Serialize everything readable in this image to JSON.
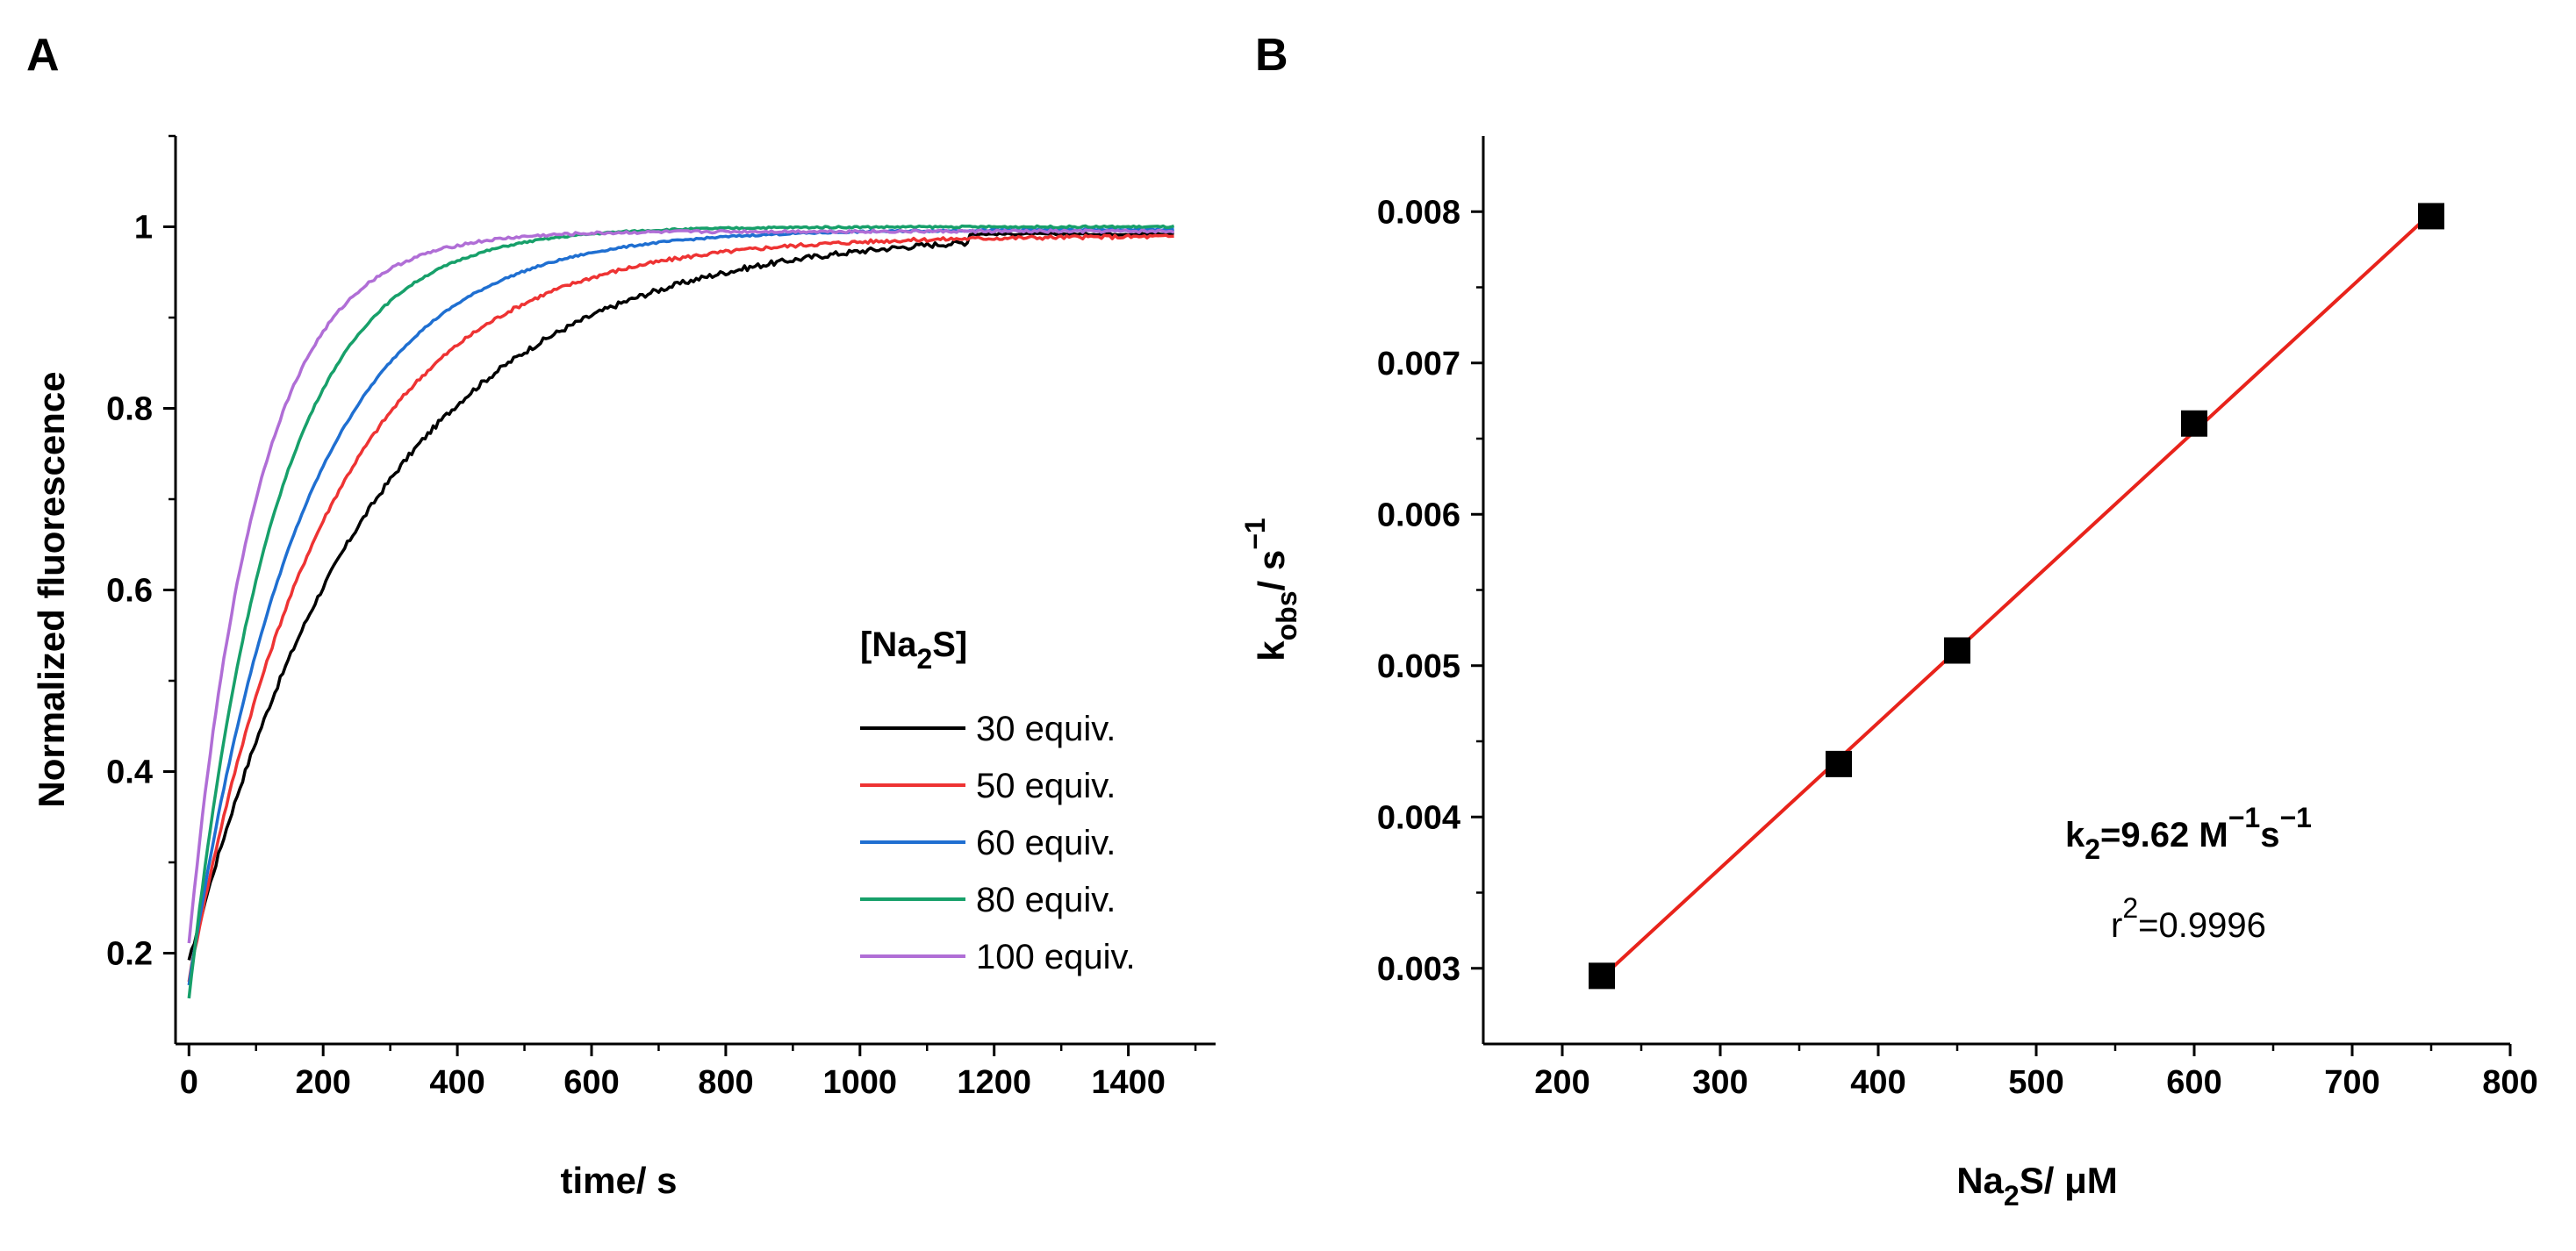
{
  "chart_data": [
    {
      "panel": "A",
      "type": "line",
      "xlabel": "time/ s",
      "ylabel": "Normalized fluorescence",
      "xlim": [
        -20,
        1530
      ],
      "ylim": [
        0.1,
        1.1
      ],
      "xticks": [
        0,
        200,
        400,
        600,
        800,
        1000,
        1200,
        1400
      ],
      "yticks": [
        0.2,
        0.4,
        0.6,
        0.8,
        1
      ],
      "legend": {
        "title_prefix": "[Na",
        "title_sub": "2",
        "title_suffix": "S]",
        "position": "right"
      },
      "series": [
        {
          "name": "30 equiv.",
          "color": "#000000",
          "y0": 0.19,
          "plateau": 0.995,
          "k": 0.0036,
          "x_end": 1160,
          "noise": 0.006
        },
        {
          "name": "50 equiv.",
          "color": "#ee3333",
          "y0": 0.17,
          "plateau": 0.99,
          "k": 0.0048,
          "x_end": 1470,
          "noise": 0.004
        },
        {
          "name": "60 equiv.",
          "color": "#1f6fd1",
          "y0": 0.165,
          "plateau": 0.997,
          "k": 0.0058,
          "x_end": 1470,
          "noise": 0.002
        },
        {
          "name": "80 equiv.",
          "color": "#17a06a",
          "y0": 0.15,
          "plateau": 1.0,
          "k": 0.0078,
          "x_end": 1470,
          "noise": 0.002
        },
        {
          "name": "100 equiv.",
          "color": "#b06ed6",
          "y0": 0.21,
          "plateau": 0.995,
          "k": 0.0098,
          "x_end": 1470,
          "noise": 0.003
        }
      ]
    },
    {
      "panel": "B",
      "type": "scatter",
      "xlabel_prefix": "Na",
      "xlabel_sub": "2",
      "xlabel_suffix": "S/ μM",
      "ylabel_main": "k",
      "ylabel_sub": "obs",
      "ylabel_suffix": "/ s",
      "ylabel_sup": "−1",
      "xlim": [
        150,
        800
      ],
      "ylim": [
        0.0025,
        0.0085
      ],
      "xticks": [
        200,
        300,
        400,
        500,
        600,
        700,
        800
      ],
      "yticks": [
        0.003,
        0.004,
        0.005,
        0.006,
        0.007,
        0.008
      ],
      "ytick_labels": [
        "0.003",
        "0.004",
        "0.005",
        "0.006",
        "0.007",
        "0.008"
      ],
      "points": [
        {
          "x": 225,
          "y": 0.00295
        },
        {
          "x": 375,
          "y": 0.00435
        },
        {
          "x": 450,
          "y": 0.0051
        },
        {
          "x": 600,
          "y": 0.0066
        },
        {
          "x": 750,
          "y": 0.00797
        }
      ],
      "fit": {
        "x0": 225,
        "y0": 0.00294,
        "x1": 750,
        "y1": 0.00799,
        "color": "#e8231b"
      },
      "annotation": {
        "k_main": "k",
        "k_sub": "2",
        "k_value": "=9.62 M",
        "k_sup1": "−1",
        "k_s": "s",
        "k_sup2": "−1",
        "r_main": "r",
        "r_sup": "2",
        "r_value": "=0.9996"
      }
    }
  ]
}
